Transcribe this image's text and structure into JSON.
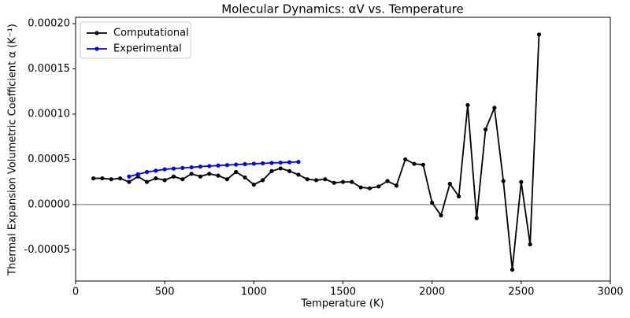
{
  "chart_data": {
    "type": "line",
    "title": "Molecular Dynamics: αV vs. Temperature",
    "x_label": "Temperature (K)",
    "y_label": "Thermal Expansion Volumetric Coefficient α (K⁻¹)",
    "xlim": [
      0,
      3000
    ],
    "xticks": [
      0,
      500,
      1000,
      1500,
      2000,
      2500,
      3000
    ],
    "ylim": [
      -8.45e-05,
      0.000207
    ],
    "yticks": [
      {
        "value": -5e-05,
        "label": "-0.00005"
      },
      {
        "value": 0,
        "label": "0.00000"
      },
      {
        "value": 5e-05,
        "label": "0.00005"
      },
      {
        "value": 0.0001,
        "label": "0.00010"
      },
      {
        "value": 0.00015,
        "label": "0.00015"
      },
      {
        "value": 0.0002,
        "label": "0.00020"
      }
    ],
    "zero_line": true,
    "legend": "upper left",
    "series": [
      {
        "name": "Computational",
        "color": "#000000",
        "x": [
          100,
          150,
          200,
          250,
          300,
          350,
          400,
          450,
          500,
          550,
          600,
          650,
          700,
          750,
          800,
          850,
          900,
          950,
          1000,
          1050,
          1100,
          1150,
          1200,
          1250,
          1300,
          1350,
          1400,
          1450,
          1500,
          1550,
          1600,
          1650,
          1700,
          1750,
          1800,
          1850,
          1900,
          1950,
          2000,
          2050,
          2100,
          2150,
          2200,
          2250,
          2300,
          2350,
          2400,
          2450,
          2500,
          2550,
          2600
        ],
        "values": [
          2.9e-05,
          2.9e-05,
          2.8e-05,
          2.9e-05,
          2.5e-05,
          3.1e-05,
          2.5e-05,
          2.9e-05,
          2.7e-05,
          3.1e-05,
          2.8e-05,
          3.4e-05,
          3.1e-05,
          3.4e-05,
          3.2e-05,
          2.8e-05,
          3.6e-05,
          3e-05,
          2.2e-05,
          2.7e-05,
          3.7e-05,
          4e-05,
          3.7e-05,
          3.3e-05,
          2.8e-05,
          2.7e-05,
          2.8e-05,
          2.4e-05,
          2.5e-05,
          2.5e-05,
          1.9e-05,
          1.8e-05,
          2e-05,
          2.6e-05,
          2.1e-05,
          5e-05,
          4.5e-05,
          4.4e-05,
          2e-06,
          -1.2e-05,
          2.3e-05,
          9e-06,
          0.00011,
          -1.5e-05,
          8.3e-05,
          0.000107,
          2.6e-05,
          -7.2e-05,
          2.5e-05,
          -4.4e-05,
          0.000188
        ]
      },
      {
        "name": "Experimental",
        "color": "#0000ff",
        "x": [
          300,
          350,
          400,
          450,
          500,
          550,
          600,
          650,
          700,
          750,
          800,
          850,
          900,
          950,
          1000,
          1050,
          1100,
          1150,
          1200,
          1250
        ],
        "values": [
          3.1e-05,
          3.35e-05,
          3.6e-05,
          3.75e-05,
          3.9e-05,
          3.98e-05,
          4.05e-05,
          4.12e-05,
          4.2e-05,
          4.26e-05,
          4.32e-05,
          4.37e-05,
          4.42e-05,
          4.47e-05,
          4.52e-05,
          4.56e-05,
          4.6e-05,
          4.64e-05,
          4.68e-05,
          4.72e-05
        ]
      }
    ]
  }
}
